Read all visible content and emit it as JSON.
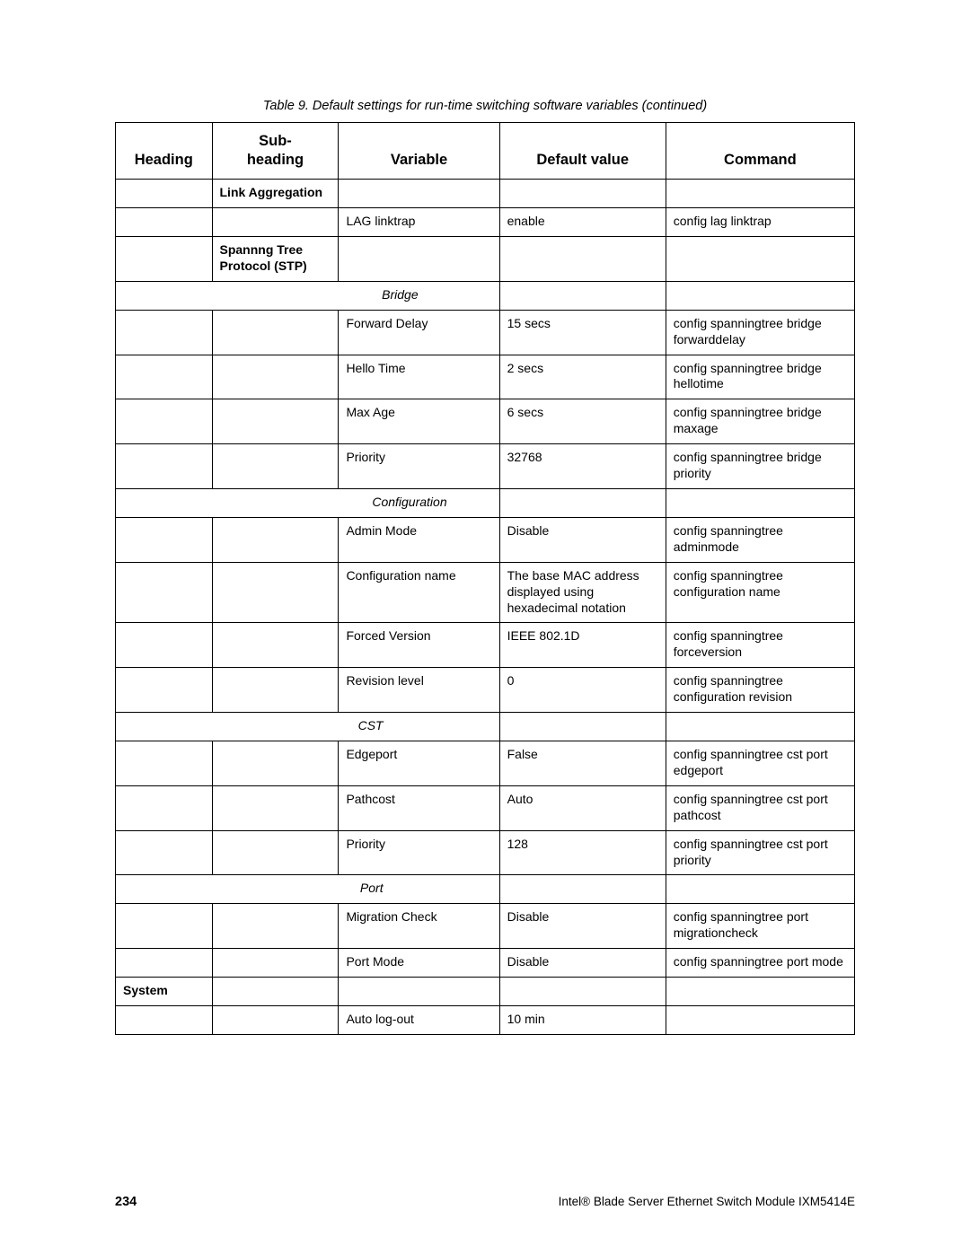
{
  "caption": "Table 9. Default settings for run-time switching software variables (continued)",
  "headers": {
    "heading_line1": "",
    "heading_line2": "Heading",
    "subheading_line1": "Sub-",
    "subheading_line2": "heading",
    "variable": "Variable",
    "default_value": "Default value",
    "command": "Command"
  },
  "sections": {
    "link_aggregation": "Link Aggregation",
    "stp": "Spannng Tree Protocol (STP)",
    "bridge": "Bridge",
    "configuration": "Configuration",
    "cst": "CST",
    "port": "Port",
    "system": "System"
  },
  "rows": {
    "r1": {
      "variable": "LAG linktrap",
      "default": "enable",
      "command": "config lag linktrap"
    },
    "r2": {
      "variable": "Forward Delay",
      "default": "15 secs",
      "command": "config spanningtree bridge forwarddelay"
    },
    "r3": {
      "variable": "Hello Time",
      "default": "2 secs",
      "command": "config spanningtree bridge hellotime"
    },
    "r4": {
      "variable": "Max Age",
      "default": "6 secs",
      "command": "config spanningtree bridge maxage"
    },
    "r5": {
      "variable": "Priority",
      "default": "32768",
      "command": "config spanningtree bridge priority"
    },
    "r6": {
      "variable": "Admin Mode",
      "default": "Disable",
      "command": "config spanningtree adminmode"
    },
    "r7": {
      "variable": "Configuration name",
      "default": "The base MAC address displayed using hexadecimal notation",
      "command": "config spanningtree configuration name"
    },
    "r8": {
      "variable": "Forced Version",
      "default": "IEEE 802.1D",
      "command": "config spanningtree forceversion"
    },
    "r9": {
      "variable": "Revision level",
      "default": "0",
      "command": "config spanningtree configuration revision"
    },
    "r10": {
      "variable": "Edgeport",
      "default": "False",
      "command": "config spanningtree cst port edgeport"
    },
    "r11": {
      "variable": "Pathcost",
      "default": "Auto",
      "command": "config spanningtree cst port pathcost"
    },
    "r12": {
      "variable": "Priority",
      "default": "128",
      "command": "config spanningtree cst port priority"
    },
    "r13": {
      "variable": "Migration Check",
      "default": "Disable",
      "command": "config spanningtree port migrationcheck"
    },
    "r14": {
      "variable": "Port Mode",
      "default": "Disable",
      "command": "config spanningtree port mode"
    },
    "r15": {
      "variable": "Auto log-out",
      "default": "10 min",
      "command": ""
    }
  },
  "footer": {
    "page": "234",
    "doc": "Intel® Blade Server Ethernet Switch Module IXM5414E"
  }
}
